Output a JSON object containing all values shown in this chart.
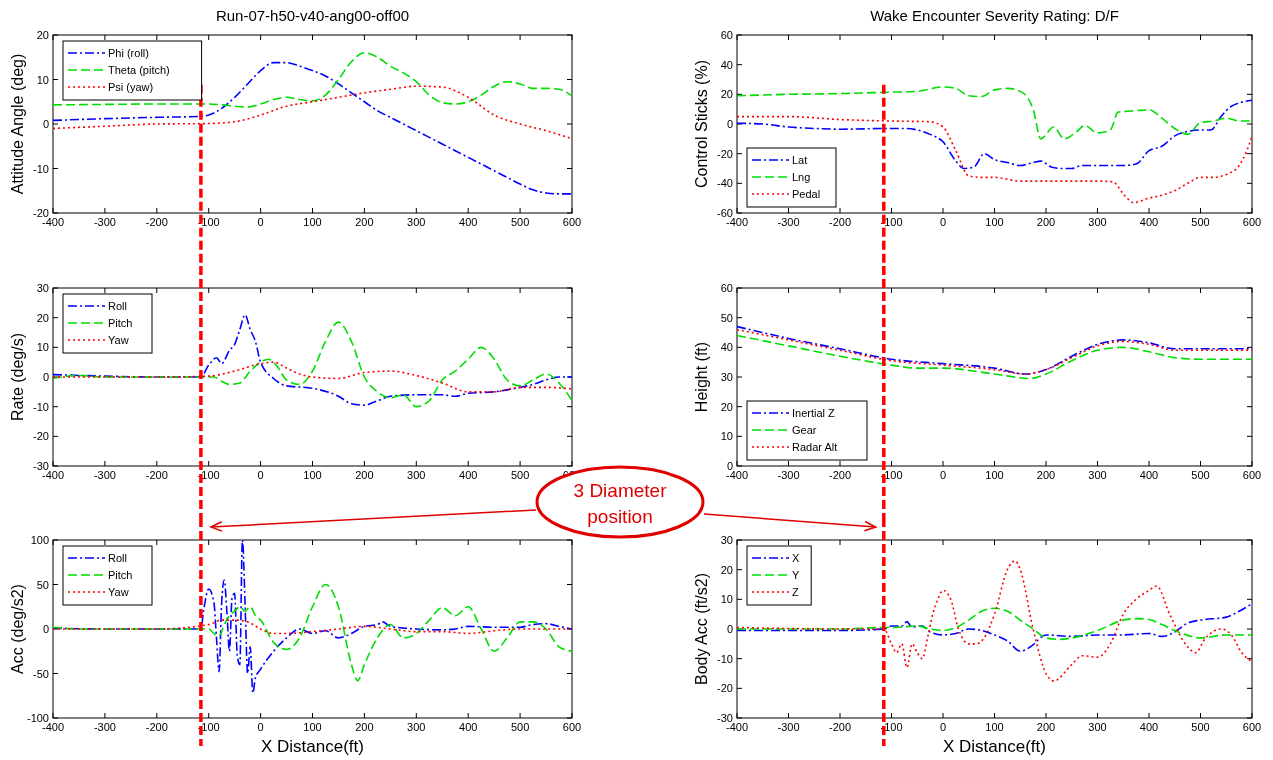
{
  "chart_data": [
    {
      "type": "line",
      "title": "Run-07-h50-v40-ang00-off00",
      "ylabel": "Attitude Angle (deg)",
      "xlim": [
        -400,
        600
      ],
      "xticks": [
        -400,
        -300,
        -200,
        -100,
        0,
        100,
        200,
        300,
        400,
        500,
        600
      ],
      "ylim": [
        -20,
        20
      ],
      "yticks": [
        -20,
        -10,
        0,
        10,
        20
      ],
      "legend": "top left",
      "ref_lines": [
        {
          "axis": "x",
          "value": -115,
          "color": "#ff0000",
          "line_style": "dashed"
        }
      ],
      "series": [
        {
          "name": "Phi (roll)",
          "color": "#0000ff",
          "line_style": "dashdot",
          "x": [
            -400,
            -300,
            -200,
            -115,
            -100,
            -75,
            -50,
            -25,
            0,
            25,
            50,
            75,
            100,
            125,
            150,
            175,
            200,
            225,
            250,
            275,
            300,
            325,
            350,
            375,
            400,
            425,
            450,
            475,
            500,
            525,
            550,
            575,
            600
          ],
          "values": [
            0.8,
            1.2,
            1.5,
            1.7,
            2,
            3.5,
            6,
            9,
            12,
            13.8,
            13.8,
            13,
            12,
            10.8,
            9,
            7,
            5,
            3,
            1.5,
            0,
            -1.5,
            -3,
            -4.5,
            -6,
            -7.5,
            -9,
            -10.5,
            -12,
            -13.5,
            -14.8,
            -15.5,
            -15.7,
            -15.7
          ]
        },
        {
          "name": "Theta (pitch)",
          "color": "#00dd00",
          "line_style": "dashed",
          "x": [
            -400,
            -300,
            -200,
            -100,
            -75,
            -50,
            -25,
            0,
            25,
            50,
            75,
            100,
            125,
            150,
            175,
            200,
            225,
            250,
            275,
            300,
            325,
            350,
            375,
            400,
            425,
            450,
            475,
            500,
            525,
            550,
            575,
            600
          ],
          "values": [
            4.3,
            4.4,
            4.5,
            4.5,
            4.3,
            4,
            3.8,
            4.5,
            5.5,
            6,
            5.5,
            5.2,
            6.5,
            10,
            14,
            16,
            15,
            13,
            11.5,
            9.5,
            6.5,
            4.8,
            4.5,
            5,
            6.5,
            8.5,
            9.5,
            9,
            8,
            8,
            7.8,
            6.3
          ]
        },
        {
          "name": "Psi (yaw)",
          "color": "#ff0000",
          "line_style": "dotted",
          "x": [
            -400,
            -300,
            -200,
            -100,
            -50,
            0,
            50,
            100,
            150,
            200,
            250,
            300,
            350,
            400,
            450,
            500,
            550,
            600
          ],
          "values": [
            -1,
            -0.5,
            0,
            0.1,
            0.5,
            2,
            4,
            5,
            6,
            7,
            7.8,
            8.5,
            8.3,
            6,
            2,
            0,
            -1.5,
            -3.3
          ]
        }
      ]
    },
    {
      "type": "line",
      "title": "Wake Encounter Severity Rating:  D/F",
      "ylabel": "Control Sticks (%)",
      "xlim": [
        -400,
        600
      ],
      "xticks": [
        -400,
        -300,
        -200,
        -100,
        0,
        100,
        200,
        300,
        400,
        500,
        600
      ],
      "ylim": [
        -60,
        60
      ],
      "yticks": [
        -60,
        -40,
        -20,
        0,
        20,
        40,
        60
      ],
      "legend": "bottom left",
      "ref_lines": [
        {
          "axis": "x",
          "value": -115,
          "color": "#ff0000",
          "line_style": "dashed"
        }
      ],
      "series": [
        {
          "name": "Lat",
          "color": "#0000ff",
          "line_style": "dashdot",
          "x": [
            -400,
            -350,
            -300,
            -250,
            -200,
            -100,
            -75,
            -50,
            -25,
            0,
            25,
            40,
            60,
            80,
            100,
            125,
            150,
            175,
            190,
            210,
            230,
            250,
            270,
            300,
            350,
            375,
            400,
            425,
            450,
            475,
            500,
            520,
            540,
            560,
            600
          ],
          "values": [
            0.5,
            0,
            -2,
            -3,
            -3.5,
            -3,
            -3,
            -4,
            -7,
            -12,
            -25,
            -30,
            -29,
            -20,
            -24,
            -26,
            -28,
            -26,
            -25,
            -29,
            -30,
            -30,
            -28,
            -28,
            -28,
            -27,
            -18,
            -15,
            -8,
            -5,
            -4,
            -4,
            5,
            12,
            16
          ]
        },
        {
          "name": "Lng",
          "color": "#00dd00",
          "line_style": "dashed",
          "x": [
            -400,
            -300,
            -200,
            -100,
            -50,
            0,
            25,
            50,
            75,
            100,
            125,
            150,
            175,
            190,
            215,
            235,
            260,
            275,
            300,
            325,
            340,
            375,
            400,
            425,
            450,
            475,
            500,
            525,
            550,
            575,
            600
          ],
          "values": [
            19,
            20,
            20.5,
            21.5,
            22,
            25,
            24,
            19,
            18.5,
            23,
            24,
            22,
            10,
            -10,
            -2,
            -10,
            -5,
            -1,
            -6,
            -4,
            8,
            9,
            9.5,
            4,
            -3,
            -7,
            1,
            2,
            4,
            2,
            2
          ]
        },
        {
          "name": "Pedal",
          "color": "#ff0000",
          "line_style": "dotted",
          "x": [
            -400,
            -300,
            -200,
            -100,
            -25,
            0,
            25,
            50,
            75,
            100,
            150,
            200,
            250,
            300,
            330,
            350,
            370,
            400,
            425,
            450,
            475,
            500,
            525,
            550,
            575,
            590,
            600
          ],
          "values": [
            5,
            5,
            3,
            2,
            1.5,
            -2,
            -18,
            -35,
            -36,
            -36,
            -38.5,
            -38.5,
            -38.5,
            -38.5,
            -39,
            -47,
            -53,
            -50,
            -48,
            -45,
            -40,
            -36,
            -36,
            -34,
            -28,
            -18,
            -8
          ]
        }
      ]
    },
    {
      "type": "line",
      "ylabel": "Rate (deg/s)",
      "xlim": [
        -400,
        600
      ],
      "xticks": [
        -400,
        -300,
        -200,
        -100,
        0,
        100,
        200,
        300,
        400,
        500,
        600
      ],
      "ylim": [
        -30,
        30
      ],
      "yticks": [
        -30,
        -20,
        -10,
        0,
        10,
        20,
        30
      ],
      "legend": "top left",
      "ref_lines": [
        {
          "axis": "x",
          "value": -115,
          "color": "#ff0000",
          "line_style": "dashed"
        }
      ],
      "series": [
        {
          "name": "Roll",
          "color": "#0000ff",
          "line_style": "dashdot",
          "x": [
            -400,
            -300,
            -200,
            -115,
            -100,
            -85,
            -75,
            -60,
            -50,
            -40,
            -30,
            -20,
            -10,
            0,
            25,
            50,
            100,
            150,
            175,
            200,
            225,
            250,
            300,
            350,
            375,
            400,
            450,
            500,
            525,
            550,
            575,
            600
          ],
          "values": [
            0.8,
            0.3,
            0,
            0,
            4,
            6.5,
            4.5,
            9,
            11,
            16,
            21,
            16,
            12,
            5,
            -0.5,
            -3,
            -3.8,
            -6.5,
            -9,
            -9.5,
            -8,
            -6.5,
            -6,
            -6,
            -6.5,
            -5.5,
            -5,
            -3.5,
            -2.5,
            -1,
            0,
            0
          ]
        },
        {
          "name": "Pitch",
          "color": "#00dd00",
          "line_style": "dashed",
          "x": [
            -400,
            -350,
            -300,
            -200,
            -115,
            -90,
            -75,
            -60,
            -40,
            -20,
            0,
            15,
            30,
            50,
            75,
            100,
            125,
            150,
            175,
            200,
            225,
            250,
            275,
            300,
            325,
            350,
            375,
            400,
            425,
            450,
            475,
            500,
            525,
            550,
            575,
            600
          ],
          "values": [
            -0.5,
            0.5,
            0,
            0,
            0,
            0,
            -1.5,
            -2.5,
            -2,
            2,
            5,
            6,
            4,
            -1,
            -2.5,
            2,
            12,
            18.5,
            12,
            0,
            -5,
            -7,
            -6,
            -10,
            -8,
            -1,
            2,
            6,
            10,
            6,
            -1,
            -3,
            -1,
            1,
            -2,
            -8
          ]
        },
        {
          "name": "Yaw",
          "color": "#ff0000",
          "line_style": "dotted",
          "x": [
            -400,
            -200,
            -100,
            -50,
            0,
            25,
            50,
            75,
            100,
            150,
            200,
            250,
            300,
            350,
            400,
            450,
            500,
            550,
            600
          ],
          "values": [
            0,
            0,
            0.3,
            2,
            4.5,
            5,
            3,
            1,
            0,
            -0.5,
            1.5,
            2,
            0.5,
            -2,
            -5,
            -5,
            -3.5,
            -3.5,
            -4
          ]
        }
      ]
    },
    {
      "type": "line",
      "ylabel": "Height (ft)",
      "xlim": [
        -400,
        600
      ],
      "xticks": [
        -400,
        -300,
        -200,
        -100,
        0,
        100,
        200,
        300,
        400,
        500,
        600
      ],
      "ylim": [
        0,
        60
      ],
      "yticks": [
        0,
        10,
        20,
        30,
        40,
        50,
        60
      ],
      "legend": "bottom left",
      "ref_lines": [
        {
          "axis": "x",
          "value": -115,
          "color": "#ff0000",
          "line_style": "dashed"
        }
      ],
      "series": [
        {
          "name": "Inertial Z",
          "color": "#0000ff",
          "line_style": "dashdot",
          "x": [
            -400,
            -300,
            -200,
            -100,
            0,
            100,
            160,
            200,
            250,
            300,
            350,
            400,
            450,
            500,
            600
          ],
          "values": [
            47,
            43,
            39.5,
            36,
            34.5,
            33,
            31,
            32.5,
            37,
            41,
            42.5,
            41.5,
            39.5,
            39.5,
            39.5
          ]
        },
        {
          "name": "Gear",
          "color": "#00dd00",
          "line_style": "dashed",
          "x": [
            -400,
            -300,
            -200,
            -100,
            -50,
            0,
            100,
            170,
            200,
            250,
            300,
            350,
            400,
            450,
            500,
            600
          ],
          "values": [
            44,
            40.5,
            37,
            34,
            33,
            33,
            31,
            29.5,
            31,
            35.5,
            39,
            40,
            38.5,
            36.5,
            36,
            36
          ]
        },
        {
          "name": "Radar Alt",
          "color": "#ff0000",
          "line_style": "dotted",
          "x": [
            -400,
            -300,
            -200,
            -100,
            0,
            100,
            160,
            200,
            250,
            300,
            350,
            400,
            450,
            500,
            600
          ],
          "values": [
            46,
            42.5,
            39,
            35.5,
            34,
            32.5,
            31,
            32.5,
            36.5,
            40.5,
            42,
            41,
            39,
            39,
            39
          ]
        }
      ]
    },
    {
      "type": "line",
      "ylabel": "Acc (deg/s2)",
      "xlabel": "X Distance(ft)",
      "xlim": [
        -400,
        600
      ],
      "xticks": [
        -400,
        -300,
        -200,
        -100,
        0,
        100,
        200,
        300,
        400,
        500,
        600
      ],
      "ylim": [
        -100,
        100
      ],
      "yticks": [
        -100,
        -50,
        0,
        50,
        100
      ],
      "legend": "top left",
      "ref_lines": [
        {
          "axis": "x",
          "value": -115,
          "color": "#ff0000",
          "line_style": "dashed"
        }
      ],
      "annotations": [
        "3 Diameter position"
      ],
      "series": [
        {
          "name": "Roll",
          "color": "#0000ff",
          "line_style": "dashdot",
          "x": [
            -400,
            -300,
            -200,
            -115,
            -110,
            -100,
            -90,
            -85,
            -80,
            -75,
            -70,
            -65,
            -60,
            -55,
            -50,
            -45,
            -40,
            -35,
            -30,
            -25,
            -20,
            -15,
            -10,
            0,
            25,
            50,
            75,
            100,
            125,
            150,
            175,
            200,
            225,
            235,
            250,
            300,
            350,
            375,
            400,
            450,
            500,
            525,
            550,
            575,
            600
          ],
          "values": [
            1,
            0,
            0,
            0,
            20,
            45,
            30,
            -10,
            -48,
            30,
            55,
            20,
            -25,
            35,
            40,
            -30,
            -40,
            100,
            30,
            -50,
            -20,
            -72,
            -55,
            -45,
            -25,
            -10,
            0,
            -5,
            -2,
            -10,
            -5,
            3,
            5,
            8,
            3,
            0,
            -1,
            0,
            3,
            2,
            2,
            5,
            6,
            3,
            0
          ]
        },
        {
          "name": "Pitch",
          "color": "#00dd00",
          "line_style": "dashed",
          "x": [
            -400,
            -350,
            -300,
            -200,
            -115,
            -100,
            -90,
            -80,
            -70,
            -60,
            -50,
            -40,
            -30,
            -20,
            -10,
            0,
            25,
            50,
            75,
            100,
            125,
            150,
            175,
            187,
            200,
            225,
            250,
            275,
            300,
            325,
            350,
            375,
            400,
            425,
            450,
            475,
            500,
            525,
            550,
            575,
            600
          ],
          "values": [
            2,
            0,
            0,
            0,
            0,
            0,
            -5,
            -8,
            5,
            15,
            20,
            25,
            20,
            25,
            15,
            10,
            -15,
            -23,
            -10,
            25,
            50,
            25,
            -40,
            -58,
            -40,
            -10,
            5,
            -10,
            -5,
            10,
            24,
            15,
            25,
            0,
            -25,
            -10,
            8,
            8,
            0,
            -20,
            -25
          ]
        },
        {
          "name": "Yaw",
          "color": "#ff0000",
          "line_style": "dotted",
          "x": [
            -400,
            -200,
            -100,
            -75,
            -50,
            -25,
            0,
            25,
            50,
            100,
            150,
            200,
            250,
            300,
            350,
            400,
            450,
            500,
            550,
            600
          ],
          "values": [
            0,
            0,
            5,
            10,
            10,
            8,
            0,
            -5,
            -5,
            -3,
            0,
            3,
            0,
            -3,
            -3,
            -5,
            -2,
            0,
            0,
            0
          ]
        }
      ]
    },
    {
      "type": "line",
      "ylabel": "Body Acc (ft/s2)",
      "xlabel": "X Distance(ft)",
      "xlim": [
        -400,
        600
      ],
      "xticks": [
        -400,
        -300,
        -200,
        -100,
        0,
        100,
        200,
        300,
        400,
        500,
        600
      ],
      "ylim": [
        -30,
        30
      ],
      "yticks": [
        -30,
        -20,
        -10,
        0,
        10,
        20,
        30
      ],
      "legend": "top left",
      "ref_lines": [
        {
          "axis": "x",
          "value": -115,
          "color": "#ff0000",
          "line_style": "dashed"
        }
      ],
      "series": [
        {
          "name": "X",
          "color": "#0000ff",
          "line_style": "dashdot",
          "x": [
            -400,
            -200,
            -115,
            -100,
            -80,
            -70,
            -60,
            -50,
            -40,
            -25,
            0,
            25,
            50,
            75,
            100,
            125,
            150,
            170,
            200,
            250,
            300,
            350,
            400,
            425,
            450,
            475,
            500,
            550,
            575,
            600
          ],
          "values": [
            -0.5,
            -0.5,
            0,
            1,
            1,
            2.5,
            0.5,
            1,
            1,
            -1,
            -2,
            -1.5,
            0,
            -0.5,
            -2,
            -4,
            -7.5,
            -6,
            -2,
            -2.5,
            -2,
            -2,
            -1.5,
            -2.5,
            -1,
            2,
            3,
            4,
            6,
            8.5
          ]
        },
        {
          "name": "Y",
          "color": "#00dd00",
          "line_style": "dashed",
          "x": [
            -400,
            -200,
            -115,
            -100,
            -50,
            -25,
            0,
            25,
            50,
            75,
            100,
            125,
            150,
            175,
            200,
            225,
            250,
            300,
            350,
            375,
            400,
            425,
            450,
            500,
            550,
            600
          ],
          "values": [
            0,
            0,
            0.5,
            0.5,
            1,
            0,
            -0.5,
            0.5,
            3,
            6,
            7,
            6,
            3,
            0,
            -3,
            -3.5,
            -3,
            -0.5,
            3,
            3.5,
            3.2,
            1.5,
            -0.5,
            -3,
            -2,
            -2
          ]
        },
        {
          "name": "Z",
          "color": "#ff0000",
          "line_style": "dotted",
          "x": [
            -400,
            -200,
            -115,
            -100,
            -90,
            -80,
            -70,
            -60,
            -50,
            -40,
            -30,
            -20,
            -10,
            0,
            15,
            30,
            50,
            65,
            80,
            100,
            125,
            140,
            150,
            175,
            200,
            215,
            250,
            270,
            300,
            325,
            350,
            375,
            400,
            415,
            440,
            475,
            490,
            510,
            540,
            560,
            580,
            600
          ],
          "values": [
            0.5,
            0,
            0,
            -5,
            -8,
            -5,
            -13,
            -5,
            -8,
            -10,
            -3,
            5,
            10,
            13,
            10,
            0,
            -5,
            -5,
            -3,
            5,
            20,
            23,
            20,
            0,
            -15,
            -17.5,
            -12,
            -9,
            -9.5,
            -5,
            5,
            10,
            13,
            14.5,
            5,
            -6,
            -8,
            -3,
            0,
            -2,
            -8,
            -11
          ]
        }
      ]
    }
  ]
}
